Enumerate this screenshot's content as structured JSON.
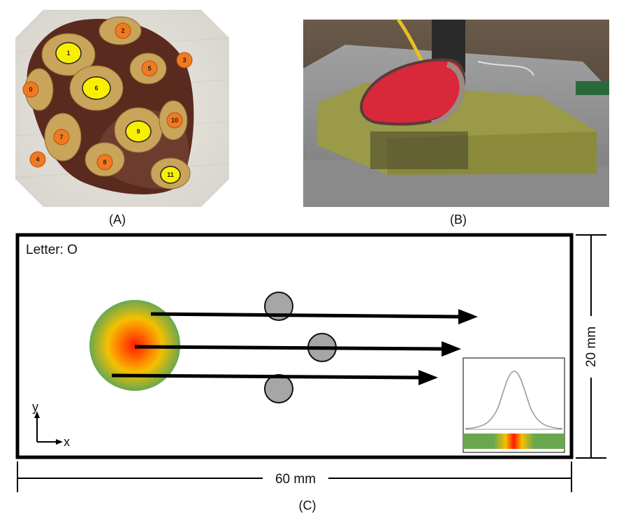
{
  "panel_a": {
    "label": "(A)",
    "sensor_numbers": [
      "0",
      "1",
      "2",
      "3",
      "4",
      "5",
      "6",
      "7",
      "8",
      "9",
      "10",
      "11"
    ]
  },
  "panel_b": {
    "label": "(B)"
  },
  "panel_c": {
    "label": "(C)",
    "letter_label": "Letter: O",
    "width_dimension": "60 mm",
    "height_dimension": "20 mm",
    "axis_y": "y",
    "axis_x": "x",
    "colors": {
      "gradient_center": "#ff1a00",
      "gradient_mid": "#f5c000",
      "gradient_edge": "#6aa84f",
      "contact_circle": "#a6a6a6",
      "arrow": "#000000"
    }
  }
}
